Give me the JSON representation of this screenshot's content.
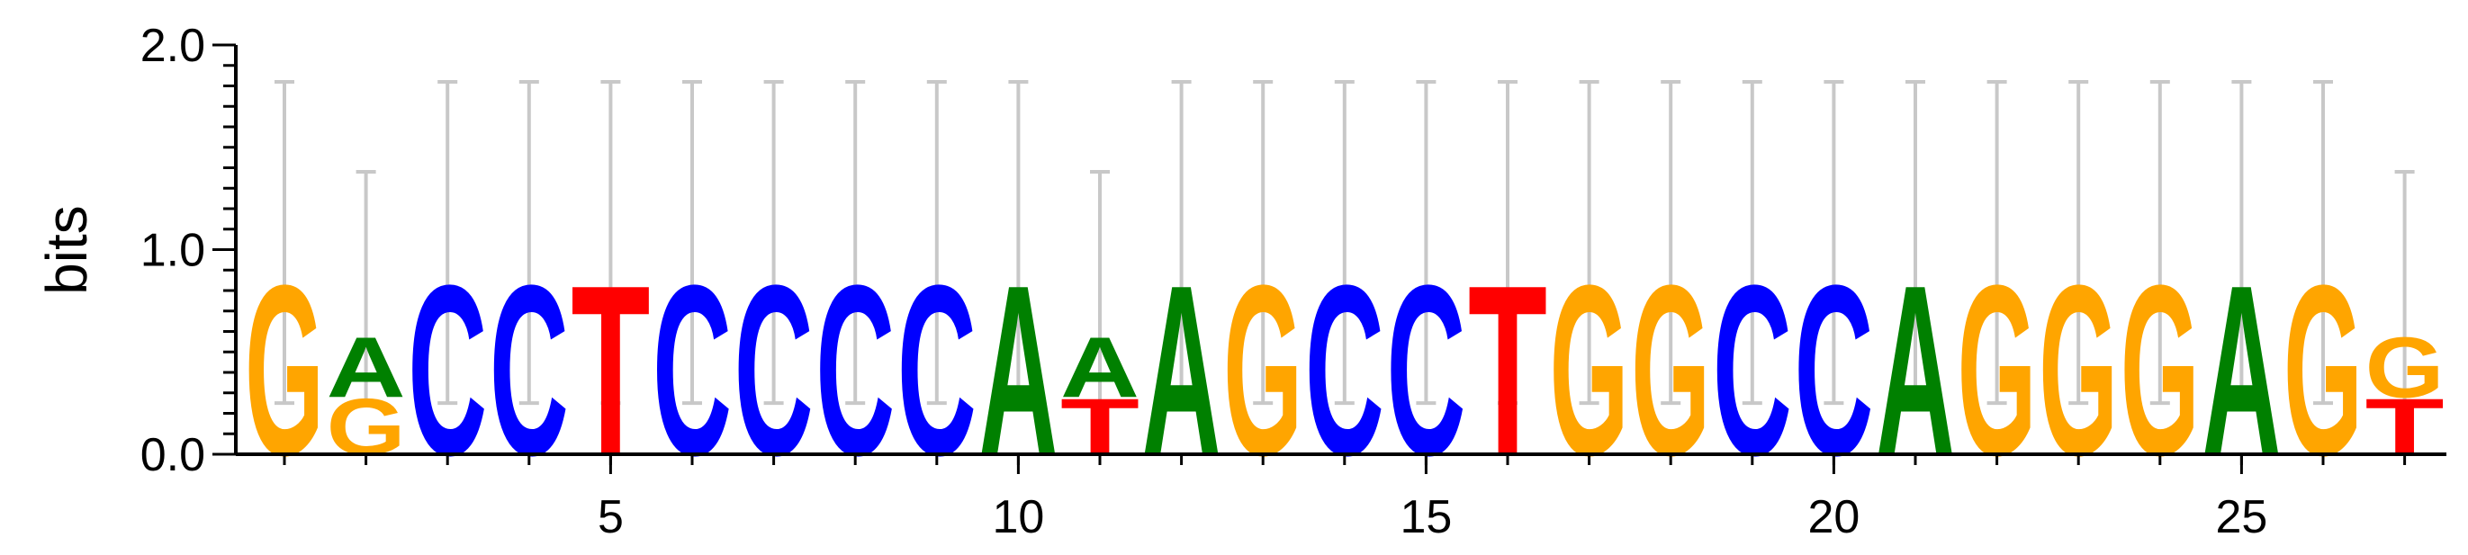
{
  "chart_data": {
    "type": "sequence-logo",
    "ylabel": "bits",
    "ylim": [
      0,
      2.0
    ],
    "y_ticks": [
      "0.0",
      "1.0",
      "2.0"
    ],
    "x_ticks": [
      "5",
      "10",
      "15",
      "20",
      "25"
    ],
    "grid": false,
    "colors": {
      "A": "#008000",
      "C": "#0000ff",
      "G": "#ffa500",
      "T": "#ff0000"
    },
    "positions": [
      {
        "pos": 1,
        "error_bar": [
          0.25,
          1.82
        ],
        "stack": [
          {
            "letter": "G",
            "height": 0.85
          }
        ]
      },
      {
        "pos": 2,
        "error_bar": [
          0.25,
          1.38
        ],
        "stack": [
          {
            "letter": "G",
            "height": 0.28
          },
          {
            "letter": "A",
            "height": 0.3
          }
        ]
      },
      {
        "pos": 3,
        "error_bar": [
          0.25,
          1.82
        ],
        "stack": [
          {
            "letter": "C",
            "height": 0.85
          }
        ]
      },
      {
        "pos": 4,
        "error_bar": [
          0.25,
          1.82
        ],
        "stack": [
          {
            "letter": "C",
            "height": 0.85
          }
        ]
      },
      {
        "pos": 5,
        "error_bar": [
          0.25,
          1.82
        ],
        "stack": [
          {
            "letter": "T",
            "height": 0.85
          }
        ]
      },
      {
        "pos": 6,
        "error_bar": [
          0.25,
          1.82
        ],
        "stack": [
          {
            "letter": "C",
            "height": 0.85
          }
        ]
      },
      {
        "pos": 7,
        "error_bar": [
          0.25,
          1.82
        ],
        "stack": [
          {
            "letter": "C",
            "height": 0.85
          }
        ]
      },
      {
        "pos": 8,
        "error_bar": [
          0.25,
          1.82
        ],
        "stack": [
          {
            "letter": "C",
            "height": 0.85
          }
        ]
      },
      {
        "pos": 9,
        "error_bar": [
          0.25,
          1.82
        ],
        "stack": [
          {
            "letter": "C",
            "height": 0.85
          }
        ]
      },
      {
        "pos": 10,
        "error_bar": [
          0.25,
          1.82
        ],
        "stack": [
          {
            "letter": "A",
            "height": 0.85
          }
        ]
      },
      {
        "pos": 11,
        "error_bar": [
          0.25,
          1.38
        ],
        "stack": [
          {
            "letter": "T",
            "height": 0.28
          },
          {
            "letter": "A",
            "height": 0.3
          }
        ]
      },
      {
        "pos": 12,
        "error_bar": [
          0.25,
          1.82
        ],
        "stack": [
          {
            "letter": "A",
            "height": 0.85
          }
        ]
      },
      {
        "pos": 13,
        "error_bar": [
          0.25,
          1.82
        ],
        "stack": [
          {
            "letter": "G",
            "height": 0.85
          }
        ]
      },
      {
        "pos": 14,
        "error_bar": [
          0.25,
          1.82
        ],
        "stack": [
          {
            "letter": "C",
            "height": 0.85
          }
        ]
      },
      {
        "pos": 15,
        "error_bar": [
          0.25,
          1.82
        ],
        "stack": [
          {
            "letter": "C",
            "height": 0.85
          }
        ]
      },
      {
        "pos": 16,
        "error_bar": [
          0.25,
          1.82
        ],
        "stack": [
          {
            "letter": "T",
            "height": 0.85
          }
        ]
      },
      {
        "pos": 17,
        "error_bar": [
          0.25,
          1.82
        ],
        "stack": [
          {
            "letter": "G",
            "height": 0.85
          }
        ]
      },
      {
        "pos": 18,
        "error_bar": [
          0.25,
          1.82
        ],
        "stack": [
          {
            "letter": "G",
            "height": 0.85
          }
        ]
      },
      {
        "pos": 19,
        "error_bar": [
          0.25,
          1.82
        ],
        "stack": [
          {
            "letter": "C",
            "height": 0.85
          }
        ]
      },
      {
        "pos": 20,
        "error_bar": [
          0.25,
          1.82
        ],
        "stack": [
          {
            "letter": "C",
            "height": 0.85
          }
        ]
      },
      {
        "pos": 21,
        "error_bar": [
          0.25,
          1.82
        ],
        "stack": [
          {
            "letter": "A",
            "height": 0.85
          }
        ]
      },
      {
        "pos": 22,
        "error_bar": [
          0.25,
          1.82
        ],
        "stack": [
          {
            "letter": "G",
            "height": 0.85
          }
        ]
      },
      {
        "pos": 23,
        "error_bar": [
          0.25,
          1.82
        ],
        "stack": [
          {
            "letter": "G",
            "height": 0.85
          }
        ]
      },
      {
        "pos": 24,
        "error_bar": [
          0.25,
          1.82
        ],
        "stack": [
          {
            "letter": "G",
            "height": 0.85
          }
        ]
      },
      {
        "pos": 25,
        "error_bar": [
          0.25,
          1.82
        ],
        "stack": [
          {
            "letter": "A",
            "height": 0.85
          }
        ]
      },
      {
        "pos": 26,
        "error_bar": [
          0.25,
          1.82
        ],
        "stack": [
          {
            "letter": "G",
            "height": 0.85
          }
        ]
      },
      {
        "pos": 27,
        "error_bar": [
          0.25,
          1.38
        ],
        "stack": [
          {
            "letter": "T",
            "height": 0.28
          },
          {
            "letter": "G",
            "height": 0.3
          }
        ]
      }
    ]
  }
}
